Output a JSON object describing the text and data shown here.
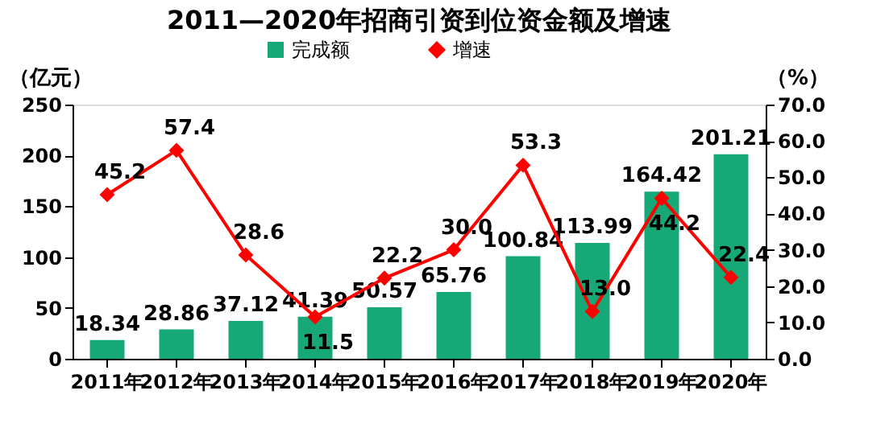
{
  "chart_data": {
    "type": "bar",
    "title": "2011—2020年招商引资到位资金额及增速",
    "categories": [
      "2011年",
      "2012年",
      "2013年",
      "2014年",
      "2015年",
      "2016年",
      "2017年",
      "2018年",
      "2019年",
      "2020年"
    ],
    "series": [
      {
        "name": "完成额",
        "color": "#17a878",
        "values": [
          18.34,
          28.86,
          37.12,
          41.39,
          50.57,
          65.76,
          100.84,
          113.99,
          164.42,
          201.21
        ],
        "value_labels": [
          "18.34",
          "28.86",
          "37.12",
          "41.39",
          "50.57",
          "65.76",
          "100.84",
          "113.99",
          "164.42",
          "201.21"
        ]
      },
      {
        "name": "增速",
        "type": "line",
        "axis": "y2",
        "color": "#ff0000",
        "marker": "diamond",
        "values": [
          45.2,
          57.4,
          28.6,
          11.5,
          22.2,
          30.0,
          53.3,
          13.0,
          44.2,
          22.4
        ],
        "value_labels": [
          "45.2",
          "57.4",
          "28.6",
          "11.5",
          "22.2",
          "30.0",
          "53.3",
          "13.0",
          "44.2",
          "22.4"
        ]
      }
    ],
    "ylabel": "（亿元）",
    "y2label": "（%）",
    "ylim": [
      0,
      250
    ],
    "yticks": [
      0,
      50,
      100,
      150,
      200,
      250
    ],
    "y2lim": [
      0,
      70
    ],
    "y2ticks": [
      {
        "value": 0,
        "label": "0.0"
      },
      {
        "value": 10,
        "label": "10.0"
      },
      {
        "value": 20,
        "label": "20.0"
      },
      {
        "value": 30,
        "label": "30.0"
      },
      {
        "value": 40,
        "label": "40.0"
      },
      {
        "value": 50,
        "label": "50.0"
      },
      {
        "value": 60,
        "label": "60.0"
      },
      {
        "value": 70,
        "label": "70.0"
      }
    ],
    "legend": "top"
  }
}
